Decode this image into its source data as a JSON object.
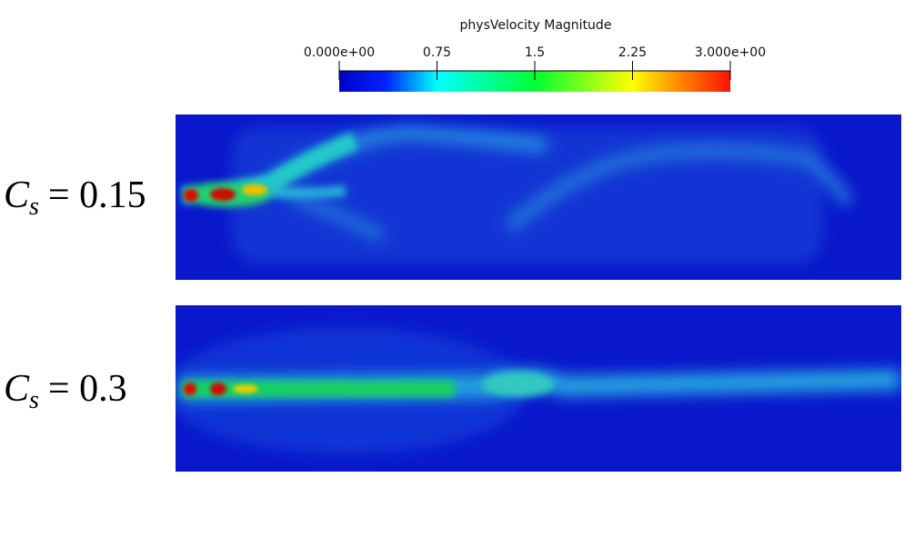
{
  "colorbar": {
    "title": "physVelocity Magnitude",
    "range": [
      0,
      3
    ],
    "ticks": [
      {
        "value": 0,
        "label": "0.000e+00"
      },
      0.75,
      1.5,
      2.25,
      {
        "value": 3,
        "label": "3.000e+00"
      }
    ]
  },
  "panels": [
    {
      "label_main": "C",
      "label_sub": "s",
      "label_rest": "= 0.15"
    },
    {
      "label_main": "C",
      "label_sub": "s",
      "label_rest": "= 0.3"
    }
  ]
}
